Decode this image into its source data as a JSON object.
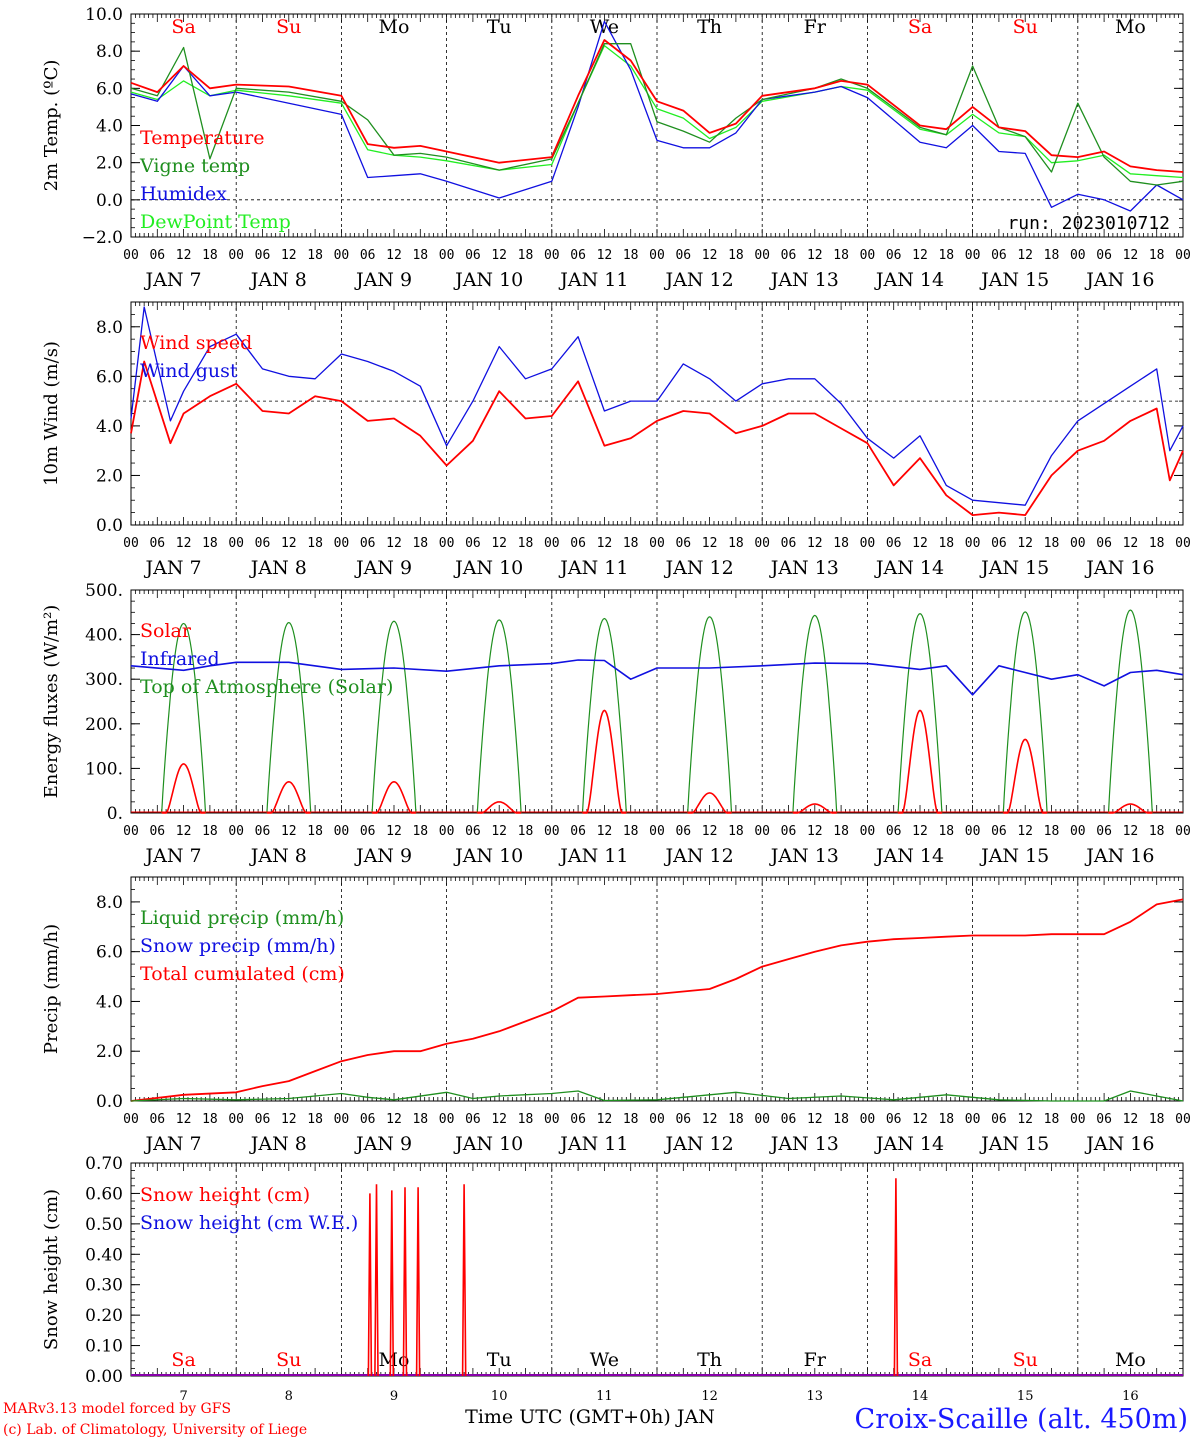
{
  "colors": {
    "red": "#ff0000",
    "green": "#1f8f1f",
    "blue": "#1010e0",
    "lightgreen": "#22ee22",
    "axis": "#000000",
    "weekend": "#ff0000",
    "weekday": "#000000",
    "title": "#1a1aff"
  },
  "time_axis": {
    "days": [
      "7",
      "8",
      "9",
      "10",
      "11",
      "12",
      "13",
      "14",
      "15",
      "16"
    ],
    "month": "JAN",
    "hour_ticks": [
      "00",
      "06",
      "12",
      "18"
    ],
    "last_tick": "00",
    "weekdays": [
      {
        "label": "Sa",
        "weekend": true
      },
      {
        "label": "Su",
        "weekend": true
      },
      {
        "label": "Mo",
        "weekend": false
      },
      {
        "label": "Tu",
        "weekend": false
      },
      {
        "label": "We",
        "weekend": false
      },
      {
        "label": "Th",
        "weekend": false
      },
      {
        "label": "Fr",
        "weekend": false
      },
      {
        "label": "Sa",
        "weekend": true
      },
      {
        "label": "Su",
        "weekend": true
      },
      {
        "label": "Mo",
        "weekend": false
      }
    ],
    "xlabel": "Time UTC (GMT+0h) JAN"
  },
  "footer": {
    "model": "MARv3.13 model forced by GFS",
    "credit": "(c) Lab. of Climatology, University of Liege",
    "location": "Croix-Scaille (alt. 450m)"
  },
  "chart_data": [
    {
      "type": "line",
      "id": "temp",
      "ylabel": "2m Temp. (ºC)",
      "ylim": [
        -2,
        10
      ],
      "yticks": [
        "-2.0",
        "0.0",
        "2.0",
        "4.0",
        "6.0",
        "8.0",
        "10.0"
      ],
      "reference_line": 0,
      "annotation": "run: 2023010712",
      "series": [
        {
          "name": "Temperature",
          "color": "red",
          "x_hours": [
            0,
            6,
            12,
            18,
            24,
            36,
            48,
            54,
            60,
            66,
            72,
            84,
            96,
            102,
            108,
            114,
            120,
            126,
            132,
            138,
            144,
            156,
            162,
            168,
            180,
            186,
            192,
            198,
            204,
            210,
            216,
            222,
            228,
            234,
            240
          ],
          "values": [
            6.3,
            5.8,
            7.2,
            6.0,
            6.2,
            6.1,
            5.6,
            3.0,
            2.8,
            2.9,
            2.6,
            2.0,
            2.3,
            5.6,
            8.6,
            7.5,
            5.3,
            4.8,
            3.6,
            4.1,
            5.6,
            6.0,
            6.4,
            6.2,
            4.0,
            3.8,
            5.0,
            3.9,
            3.7,
            2.4,
            2.3,
            2.6,
            1.8,
            1.6,
            1.5
          ]
        },
        {
          "name": "Vigne temp",
          "color": "green",
          "x_hours": [
            0,
            6,
            12,
            18,
            24,
            36,
            48,
            54,
            60,
            66,
            72,
            84,
            96,
            102,
            108,
            114,
            120,
            126,
            132,
            138,
            144,
            156,
            162,
            168,
            180,
            186,
            192,
            198,
            204,
            210,
            216,
            222,
            228,
            234,
            240
          ],
          "values": [
            6.0,
            5.6,
            8.2,
            2.2,
            6.0,
            5.8,
            5.3,
            4.3,
            2.4,
            2.5,
            2.3,
            1.6,
            2.2,
            5.2,
            8.4,
            8.4,
            4.2,
            3.7,
            3.1,
            4.4,
            5.4,
            6.0,
            6.5,
            6.0,
            3.9,
            3.5,
            7.2,
            3.9,
            3.4,
            1.5,
            5.2,
            2.3,
            1.0,
            0.8,
            1.0
          ]
        },
        {
          "name": "Humidex",
          "color": "blue",
          "x_hours": [
            0,
            6,
            12,
            18,
            24,
            36,
            48,
            54,
            60,
            66,
            72,
            84,
            96,
            102,
            108,
            114,
            120,
            126,
            132,
            138,
            144,
            156,
            162,
            168,
            180,
            186,
            192,
            198,
            204,
            210,
            216,
            222,
            228,
            234,
            240
          ],
          "values": [
            5.7,
            5.3,
            7.2,
            5.6,
            5.8,
            5.2,
            4.6,
            1.2,
            1.3,
            1.4,
            1.0,
            0.1,
            1.0,
            5.0,
            9.6,
            7.0,
            3.2,
            2.8,
            2.8,
            3.6,
            5.4,
            5.8,
            6.1,
            5.5,
            3.1,
            2.8,
            4.0,
            2.6,
            2.5,
            -0.4,
            0.3,
            0.0,
            -0.6,
            0.8,
            0.0
          ]
        },
        {
          "name": "DewPoint Temp",
          "color": "lightgreen",
          "x_hours": [
            0,
            6,
            12,
            18,
            24,
            36,
            48,
            54,
            60,
            66,
            72,
            84,
            96,
            102,
            108,
            114,
            120,
            126,
            132,
            138,
            144,
            156,
            162,
            168,
            180,
            186,
            192,
            198,
            204,
            210,
            216,
            222,
            228,
            234,
            240
          ],
          "values": [
            5.8,
            5.4,
            6.4,
            5.6,
            5.9,
            5.6,
            5.2,
            2.7,
            2.4,
            2.3,
            2.1,
            1.6,
            1.9,
            5.2,
            8.3,
            7.2,
            4.9,
            4.4,
            3.3,
            3.9,
            5.3,
            5.8,
            6.1,
            5.9,
            3.8,
            3.5,
            4.6,
            3.6,
            3.4,
            2.0,
            2.1,
            2.4,
            1.4,
            1.3,
            1.2
          ]
        }
      ]
    },
    {
      "type": "line",
      "id": "wind",
      "ylabel": "10m Wind (m/s)",
      "ylim": [
        0,
        9
      ],
      "yticks": [
        "0.0",
        "2.0",
        "4.0",
        "6.0",
        "8.0"
      ],
      "reference_line": 5,
      "series": [
        {
          "name": "Wind speed",
          "color": "red",
          "x_hours": [
            0,
            3,
            9,
            12,
            18,
            24,
            30,
            36,
            42,
            48,
            54,
            60,
            66,
            72,
            78,
            84,
            90,
            96,
            102,
            108,
            114,
            120,
            126,
            132,
            138,
            144,
            150,
            156,
            162,
            168,
            174,
            180,
            186,
            192,
            198,
            204,
            210,
            216,
            222,
            228,
            234,
            237,
            240
          ],
          "values": [
            3.7,
            6.6,
            3.3,
            4.5,
            5.2,
            5.7,
            4.6,
            4.5,
            5.2,
            5.0,
            4.2,
            4.3,
            3.6,
            2.4,
            3.4,
            5.4,
            4.3,
            4.4,
            5.8,
            3.2,
            3.5,
            4.2,
            4.6,
            4.5,
            3.7,
            4.0,
            4.5,
            4.5,
            3.9,
            3.3,
            1.6,
            2.7,
            1.2,
            0.4,
            0.5,
            0.4,
            2.0,
            3.0,
            3.4,
            4.2,
            4.7,
            1.8,
            3.0
          ]
        },
        {
          "name": "Wind gust",
          "color": "blue",
          "x_hours": [
            0,
            3,
            9,
            12,
            18,
            24,
            30,
            36,
            42,
            48,
            54,
            60,
            66,
            72,
            78,
            84,
            90,
            96,
            102,
            108,
            114,
            120,
            126,
            132,
            138,
            144,
            150,
            156,
            162,
            168,
            174,
            180,
            186,
            192,
            198,
            204,
            210,
            216,
            222,
            228,
            234,
            237,
            240
          ],
          "values": [
            4.3,
            8.8,
            4.2,
            5.4,
            7.2,
            7.7,
            6.3,
            6.0,
            5.9,
            6.9,
            6.6,
            6.2,
            5.6,
            3.2,
            5.0,
            7.2,
            5.9,
            6.3,
            7.6,
            4.6,
            5.0,
            5.0,
            6.5,
            5.9,
            5.0,
            5.7,
            5.9,
            5.9,
            4.9,
            3.5,
            2.7,
            3.6,
            1.6,
            1.0,
            0.9,
            0.8,
            2.8,
            4.2,
            4.9,
            5.6,
            6.3,
            3.0,
            4.0
          ]
        }
      ]
    },
    {
      "type": "line",
      "id": "energy",
      "ylabel": "Energy fluxes (W/m²)",
      "ylim": [
        0,
        500
      ],
      "yticks": [
        "0.",
        "100.",
        "200.",
        "300.",
        "400.",
        "500."
      ],
      "daily_peaks": {
        "toa": [
          425,
          427,
          430,
          433,
          436,
          440,
          443,
          447,
          451,
          455
        ],
        "solar": [
          110,
          70,
          70,
          25,
          230,
          45,
          20,
          230,
          165,
          20
        ]
      },
      "series": [
        {
          "name": "Solar",
          "color": "red"
        },
        {
          "name": "Infrared",
          "color": "blue",
          "x_hours": [
            0,
            12,
            18,
            24,
            36,
            48,
            60,
            72,
            84,
            96,
            102,
            108,
            114,
            120,
            132,
            144,
            156,
            168,
            180,
            186,
            192,
            198,
            204,
            210,
            216,
            222,
            228,
            234,
            240
          ],
          "values": [
            330,
            320,
            330,
            338,
            338,
            322,
            325,
            318,
            330,
            335,
            343,
            342,
            300,
            325,
            325,
            330,
            336,
            335,
            322,
            330,
            265,
            330,
            315,
            300,
            310,
            285,
            315,
            320,
            310
          ]
        },
        {
          "name": "Top of Atmosphere (Solar)",
          "color": "green"
        }
      ]
    },
    {
      "type": "line",
      "id": "precip",
      "ylabel": "Precip (mm/h)",
      "ylim": [
        0,
        9
      ],
      "yticks": [
        "0.0",
        "2.0",
        "4.0",
        "6.0",
        "8.0"
      ],
      "series": [
        {
          "name": "Liquid precip (mm/h)",
          "color": "green",
          "x_hours": [
            0,
            12,
            24,
            36,
            48,
            54,
            60,
            72,
            78,
            84,
            96,
            102,
            108,
            120,
            138,
            150,
            162,
            174,
            186,
            198,
            210,
            222,
            228,
            234,
            240
          ],
          "values": [
            0.0,
            0.1,
            0.05,
            0.1,
            0.3,
            0.15,
            0.05,
            0.35,
            0.1,
            0.2,
            0.3,
            0.4,
            0.02,
            0.05,
            0.35,
            0.1,
            0.2,
            0.05,
            0.25,
            0.05,
            0.0,
            0.0,
            0.4,
            0.2,
            0.0
          ]
        },
        {
          "name": "Snow precip (mm/h)",
          "color": "blue"
        },
        {
          "name": "Total cumulated (cm)",
          "color": "red",
          "x_hours": [
            0,
            12,
            24,
            30,
            36,
            42,
            48,
            54,
            60,
            66,
            72,
            78,
            84,
            90,
            96,
            102,
            108,
            114,
            120,
            126,
            132,
            138,
            144,
            150,
            156,
            162,
            168,
            174,
            180,
            186,
            192,
            198,
            204,
            210,
            216,
            222,
            228,
            234,
            240
          ],
          "values": [
            0.0,
            0.25,
            0.35,
            0.6,
            0.8,
            1.2,
            1.6,
            1.85,
            2.0,
            2.0,
            2.3,
            2.5,
            2.8,
            3.2,
            3.6,
            4.15,
            4.2,
            4.25,
            4.3,
            4.4,
            4.5,
            4.9,
            5.4,
            5.7,
            6.0,
            6.25,
            6.4,
            6.5,
            6.55,
            6.6,
            6.65,
            6.65,
            6.65,
            6.7,
            6.7,
            6.7,
            7.2,
            7.9,
            8.1
          ]
        }
      ]
    },
    {
      "type": "line",
      "id": "snow",
      "ylabel": "Snow height (cm)",
      "ylim": [
        0,
        0.7
      ],
      "yticks": [
        "0.00",
        "0.10",
        "0.20",
        "0.30",
        "0.40",
        "0.50",
        "0.60",
        "0.70"
      ],
      "spikes": [
        {
          "x_hour": 54.5,
          "value": 0.6
        },
        {
          "x_hour": 56.0,
          "value": 0.63
        },
        {
          "x_hour": 59.5,
          "value": 0.61
        },
        {
          "x_hour": 62.5,
          "value": 0.62
        },
        {
          "x_hour": 65.5,
          "value": 0.62
        },
        {
          "x_hour": 76.0,
          "value": 0.63
        },
        {
          "x_hour": 174.5,
          "value": 0.65
        }
      ],
      "series": [
        {
          "name": "Snow height (cm)",
          "color": "red"
        },
        {
          "name": "Snow height (cm W.E.)",
          "color": "blue"
        }
      ]
    }
  ]
}
